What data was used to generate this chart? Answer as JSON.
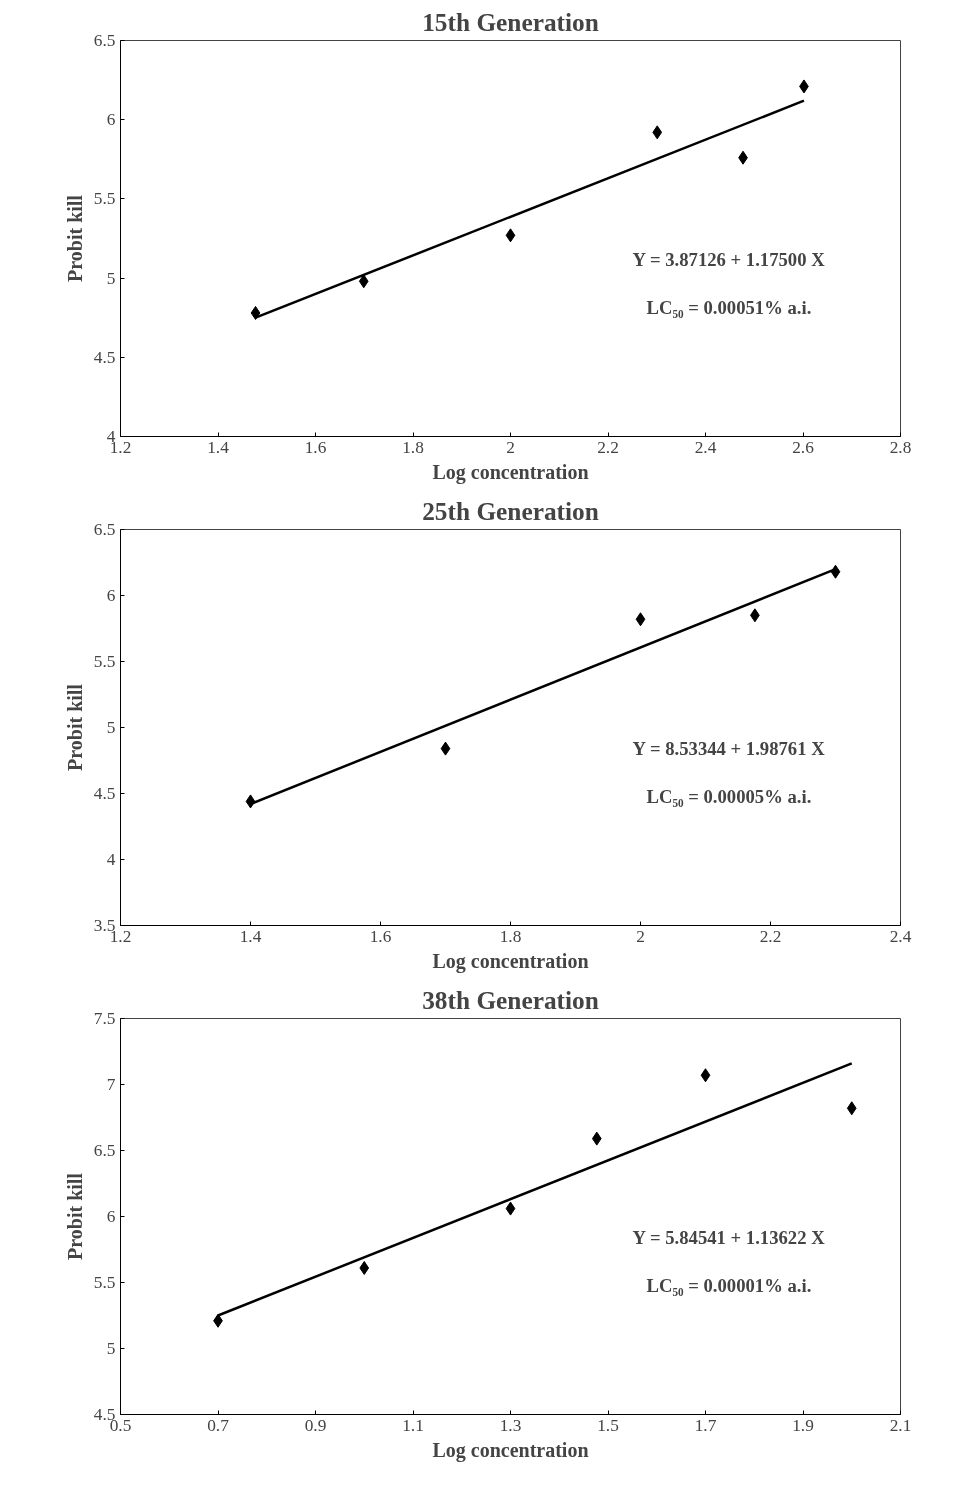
{
  "chart_data": [
    {
      "type": "scatter",
      "title": "15th Generation",
      "xlabel": "Log concentration",
      "ylabel": "Probit kill",
      "xlim": [
        1.2,
        2.8
      ],
      "xticks": [
        1.2,
        1.4,
        1.6,
        1.8,
        2,
        2.2,
        2.4,
        2.6,
        2.8
      ],
      "ylim": [
        4,
        6.5
      ],
      "yticks": [
        4,
        4.5,
        5,
        5.5,
        6,
        6.5
      ],
      "grid": false,
      "annotations": [
        "Y = 3.87126 + 1.17500 X",
        "LC₅₀ = 0.00051% a.i."
      ],
      "series": [
        {
          "marker": "diamond",
          "color": "#000000",
          "x": [
            1.477,
            1.699,
            2.0,
            2.301,
            2.477,
            2.602
          ],
          "values": [
            4.78,
            4.98,
            5.27,
            5.92,
            5.76,
            6.21
          ]
        },
        {
          "type": "line",
          "color": "#000000",
          "x": [
            1.477,
            2.602
          ],
          "values": [
            4.75,
            6.12
          ]
        }
      ]
    },
    {
      "type": "scatter",
      "title": "25th Generation",
      "xlabel": "Log concentration",
      "ylabel": "Probit kill",
      "xlim": [
        1.2,
        2.4
      ],
      "xticks": [
        1.2,
        1.4,
        1.6,
        1.8,
        2,
        2.2,
        2.4
      ],
      "ylim": [
        3.5,
        6.5
      ],
      "yticks": [
        3.5,
        4,
        4.5,
        5,
        5.5,
        6,
        6.5
      ],
      "grid": false,
      "annotations": [
        "Y = 8.53344 + 1.98761 X",
        "LC₅₀ = 0.00005% a.i."
      ],
      "series": [
        {
          "marker": "diamond",
          "color": "#000000",
          "x": [
            1.4,
            1.7,
            2.0,
            2.176,
            2.3
          ],
          "values": [
            4.44,
            4.84,
            5.82,
            5.85,
            6.18
          ]
        },
        {
          "type": "line",
          "color": "#000000",
          "x": [
            1.4,
            2.3
          ],
          "values": [
            4.42,
            6.2
          ]
        }
      ]
    },
    {
      "type": "scatter",
      "title": "38th Generation",
      "xlabel": "Log concentration",
      "ylabel": "Probit kill",
      "xlim": [
        0.5,
        2.1
      ],
      "xticks": [
        0.5,
        0.7,
        0.9,
        1.1,
        1.3,
        1.5,
        1.7,
        1.9,
        2.1
      ],
      "ylim": [
        4.5,
        7.5
      ],
      "yticks": [
        4.5,
        5,
        5.5,
        6,
        6.5,
        7,
        7.5
      ],
      "grid": false,
      "annotations": [
        "Y = 5.84541 + 1.13622 X",
        "LC₅₀ = 0.00001% a.i."
      ],
      "series": [
        {
          "marker": "diamond",
          "color": "#000000",
          "x": [
            0.7,
            1.0,
            1.3,
            1.477,
            1.7,
            2.0
          ],
          "values": [
            5.21,
            5.61,
            6.06,
            6.59,
            7.07,
            6.82
          ]
        },
        {
          "type": "line",
          "color": "#000000",
          "x": [
            0.7,
            2.0
          ],
          "values": [
            5.25,
            7.16
          ]
        }
      ]
    }
  ]
}
